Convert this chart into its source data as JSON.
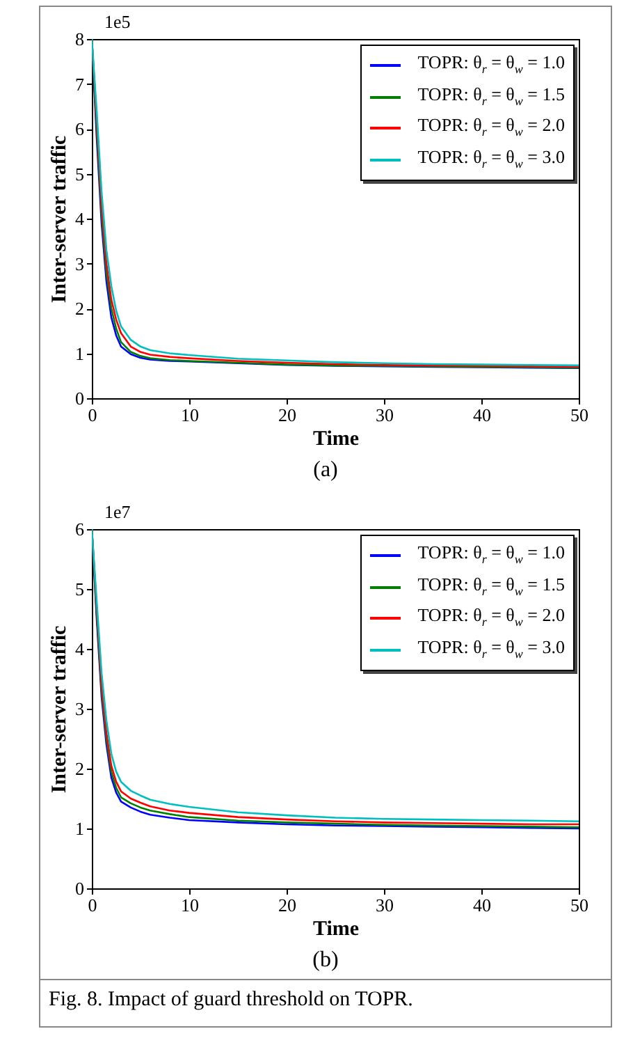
{
  "chart_data": [
    {
      "type": "line",
      "xlabel": "Time",
      "ylabel": "Inter-server traffic",
      "annotations": [
        "1e5",
        "(a)"
      ],
      "legend": "top right",
      "grid": false,
      "x": [
        0,
        0.5,
        1,
        1.5,
        2,
        2.5,
        3,
        4,
        5,
        6,
        8,
        10,
        15,
        20,
        25,
        30,
        35,
        40,
        45,
        50
      ],
      "xlim": [
        0,
        50
      ],
      "xticks": [
        0,
        10,
        20,
        30,
        40,
        50
      ],
      "ylim": [
        0,
        8
      ],
      "yticks": [
        0,
        1,
        2,
        3,
        4,
        5,
        6,
        7,
        8
      ],
      "series": [
        {
          "name": "TOPR: θ$_{r}$ = θ$_{w}$ = 1.0",
          "color": "#0000ff",
          "values": [
            8,
            5.8,
            3.9,
            2.6,
            1.8,
            1.4,
            1.15,
            0.98,
            0.9,
            0.86,
            0.83,
            0.82,
            0.78,
            0.74,
            0.72,
            0.71,
            0.7,
            0.69,
            0.68,
            0.67
          ]
        },
        {
          "name": "TOPR: θ$_{r}$ = θ$_{w}$ = 1.5",
          "color": "#008000",
          "values": [
            8,
            6,
            4.1,
            2.8,
            2,
            1.55,
            1.25,
            1.03,
            0.94,
            0.89,
            0.85,
            0.83,
            0.79,
            0.75,
            0.73,
            0.72,
            0.71,
            0.7,
            0.69,
            0.68
          ]
        },
        {
          "name": "TOPR: θ$_{r}$ = θ$_{w}$ = 2.0",
          "color": "#ff0000",
          "values": [
            8,
            6.2,
            4.3,
            3,
            2.2,
            1.75,
            1.45,
            1.15,
            1.03,
            0.97,
            0.92,
            0.89,
            0.83,
            0.79,
            0.76,
            0.74,
            0.73,
            0.72,
            0.71,
            0.7
          ]
        },
        {
          "name": "TOPR: θ$_{r}$ = θ$_{w}$ = 3.0",
          "color": "#00bfbf",
          "values": [
            8,
            6.4,
            4.6,
            3.3,
            2.5,
            1.95,
            1.6,
            1.3,
            1.15,
            1.07,
            1,
            0.96,
            0.88,
            0.84,
            0.8,
            0.78,
            0.76,
            0.75,
            0.74,
            0.73
          ]
        }
      ]
    },
    {
      "type": "line",
      "xlabel": "Time",
      "ylabel": "Inter-server traffic",
      "annotations": [
        "1e7",
        "(b)",
        "Fig. 8.  Impact of guard threshold on TOPR."
      ],
      "legend": "top right",
      "grid": false,
      "x": [
        0,
        0.5,
        1,
        1.5,
        2,
        2.5,
        3,
        4,
        5,
        6,
        8,
        10,
        15,
        20,
        25,
        30,
        35,
        40,
        45,
        50
      ],
      "xlim": [
        0,
        50
      ],
      "xticks": [
        0,
        10,
        20,
        30,
        40,
        50
      ],
      "ylim": [
        0,
        6
      ],
      "yticks": [
        0,
        1,
        2,
        3,
        4,
        5,
        6
      ],
      "series": [
        {
          "name": "TOPR: θ$_{r}$ = θ$_{w}$ = 1.0",
          "color": "#0000ff",
          "values": [
            6,
            4.5,
            3.2,
            2.4,
            1.85,
            1.6,
            1.45,
            1.35,
            1.28,
            1.23,
            1.18,
            1.14,
            1.1,
            1.07,
            1.05,
            1.04,
            1.03,
            1.02,
            1.01,
            1
          ]
        },
        {
          "name": "TOPR: θ$_{r}$ = θ$_{w}$ = 1.5",
          "color": "#008000",
          "values": [
            6,
            4.6,
            3.3,
            2.5,
            1.95,
            1.68,
            1.52,
            1.42,
            1.35,
            1.3,
            1.24,
            1.19,
            1.13,
            1.1,
            1.08,
            1.06,
            1.05,
            1.04,
            1.03,
            1.02
          ]
        },
        {
          "name": "TOPR: θ$_{r}$ = θ$_{w}$ = 2.0",
          "color": "#ff0000",
          "values": [
            6,
            4.7,
            3.4,
            2.6,
            2.05,
            1.78,
            1.62,
            1.5,
            1.43,
            1.37,
            1.3,
            1.26,
            1.19,
            1.15,
            1.12,
            1.1,
            1.09,
            1.08,
            1.07,
            1.07
          ]
        },
        {
          "name": "TOPR: θ$_{r}$ = θ$_{w}$ = 3.0",
          "color": "#00bfbf",
          "values": [
            6,
            4.8,
            3.6,
            2.8,
            2.25,
            1.95,
            1.78,
            1.63,
            1.55,
            1.48,
            1.41,
            1.36,
            1.27,
            1.22,
            1.18,
            1.16,
            1.15,
            1.14,
            1.13,
            1.12
          ]
        }
      ]
    }
  ]
}
